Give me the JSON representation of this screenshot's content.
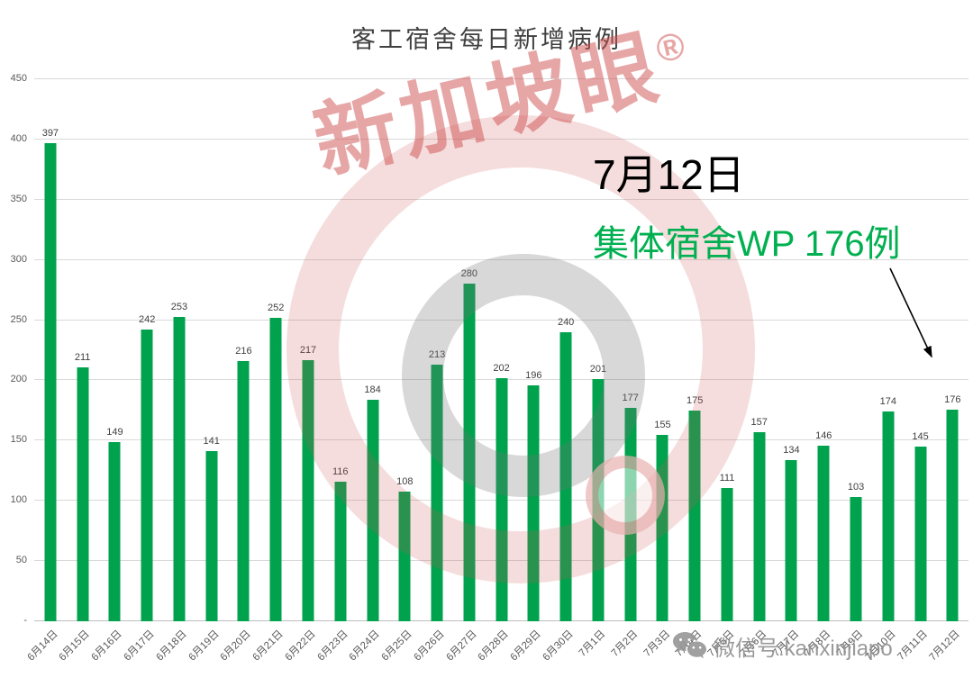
{
  "title": "客工宿舍每日新增病例",
  "annotation": {
    "line1": "7月12日",
    "line2": "集体宿舍WP 176例"
  },
  "watermark": {
    "brand": "新加坡眼",
    "registered": "®",
    "wechat": "微信号:kanxinjiapo"
  },
  "colors": {
    "bar": "#00A24D",
    "annotation_green": "#00B050",
    "value_label": "#404040",
    "axis_label": "#595959",
    "grid": "#d9d9d9",
    "watermark_red": "#CF4D4D"
  },
  "chart_data": {
    "type": "bar",
    "title": "客工宿舍每日新增病例",
    "xlabel": "",
    "ylabel": "",
    "ylim": [
      0,
      450
    ],
    "grid": true,
    "legend": false,
    "bar_color": "#00A24D",
    "yticks": [
      0,
      50,
      100,
      150,
      200,
      250,
      300,
      350,
      400,
      450
    ],
    "ytick_labels": [
      "-",
      "50",
      "100",
      "150",
      "200",
      "250",
      "300",
      "350",
      "400",
      "450"
    ],
    "categories": [
      "6月14日",
      "6月15日",
      "6月16日",
      "6月17日",
      "6月18日",
      "6月19日",
      "6月20日",
      "6月21日",
      "6月22日",
      "6月23日",
      "6月24日",
      "6月25日",
      "6月26日",
      "6月27日",
      "6月28日",
      "6月29日",
      "6月30日",
      "7月1日",
      "7月2日",
      "7月3日",
      "7月4日",
      "7月5日",
      "7月6日",
      "7月7日",
      "7月8日",
      "7月9日",
      "7月10日",
      "7月11日",
      "7月12日"
    ],
    "values": [
      397,
      211,
      149,
      242,
      253,
      141,
      216,
      252,
      217,
      116,
      184,
      108,
      213,
      280,
      202,
      196,
      240,
      201,
      177,
      155,
      175,
      111,
      157,
      134,
      146,
      103,
      174,
      145,
      176
    ]
  }
}
